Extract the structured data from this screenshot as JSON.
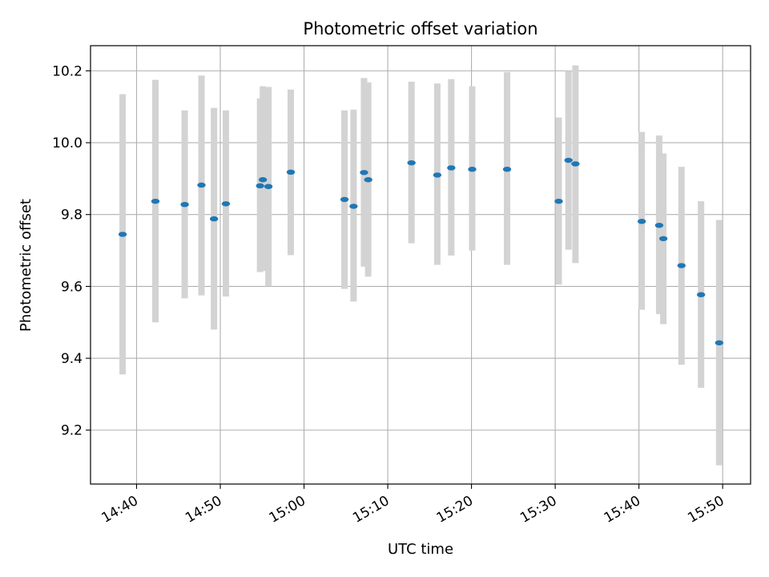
{
  "chart_data": {
    "type": "scatter",
    "title": "Photometric offset variation",
    "xlabel": "UTC time",
    "ylabel": "Photometric offset",
    "x_ticks": [
      "14:40",
      "14:50",
      "15:00",
      "15:10",
      "15:20",
      "15:30",
      "15:40",
      "15:50"
    ],
    "y_ticks": [
      "9.2",
      "9.4",
      "9.6",
      "9.8",
      "10.0",
      "10.2"
    ],
    "xlim": [
      "14:34:30",
      "15:53:20"
    ],
    "ylim": [
      9.05,
      10.27
    ],
    "grid": true,
    "colors": {
      "points": "#1f77b4",
      "error_bars": "#d3d3d3",
      "grid": "#b0b0b0"
    },
    "points": [
      {
        "x": "14:38:20",
        "y": 9.745,
        "ylow": 9.355,
        "yhigh": 10.135
      },
      {
        "x": "14:42:15",
        "y": 9.837,
        "ylow": 9.5,
        "yhigh": 10.175
      },
      {
        "x": "14:45:45",
        "y": 9.828,
        "ylow": 9.567,
        "yhigh": 10.09
      },
      {
        "x": "14:47:45",
        "y": 9.882,
        "ylow": 9.575,
        "yhigh": 10.187
      },
      {
        "x": "14:49:15",
        "y": 9.788,
        "ylow": 9.48,
        "yhigh": 10.097
      },
      {
        "x": "14:50:40",
        "y": 9.83,
        "ylow": 9.572,
        "yhigh": 10.09
      },
      {
        "x": "14:54:45",
        "y": 9.88,
        "ylow": 9.64,
        "yhigh": 10.123
      },
      {
        "x": "14:55:05",
        "y": 9.897,
        "ylow": 9.643,
        "yhigh": 10.157
      },
      {
        "x": "14:55:45",
        "y": 9.878,
        "ylow": 9.6,
        "yhigh": 10.155
      },
      {
        "x": "14:58:25",
        "y": 9.918,
        "ylow": 9.687,
        "yhigh": 10.148
      },
      {
        "x": "15:04:50",
        "y": 9.842,
        "ylow": 9.593,
        "yhigh": 10.09
      },
      {
        "x": "15:05:55",
        "y": 9.823,
        "ylow": 9.558,
        "yhigh": 10.092
      },
      {
        "x": "15:07:10",
        "y": 9.917,
        "ylow": 9.655,
        "yhigh": 10.18
      },
      {
        "x": "15:07:40",
        "y": 9.897,
        "ylow": 9.627,
        "yhigh": 10.168
      },
      {
        "x": "15:12:50",
        "y": 9.944,
        "ylow": 9.72,
        "yhigh": 10.17
      },
      {
        "x": "15:15:55",
        "y": 9.91,
        "ylow": 9.66,
        "yhigh": 10.165
      },
      {
        "x": "15:17:35",
        "y": 9.93,
        "ylow": 9.686,
        "yhigh": 10.177
      },
      {
        "x": "15:20:05",
        "y": 9.926,
        "ylow": 9.7,
        "yhigh": 10.157
      },
      {
        "x": "15:24:15",
        "y": 9.926,
        "ylow": 9.66,
        "yhigh": 10.197
      },
      {
        "x": "15:30:25",
        "y": 9.837,
        "ylow": 9.605,
        "yhigh": 10.07
      },
      {
        "x": "15:31:35",
        "y": 9.951,
        "ylow": 9.702,
        "yhigh": 10.2
      },
      {
        "x": "15:32:25",
        "y": 9.941,
        "ylow": 9.665,
        "yhigh": 10.215
      },
      {
        "x": "15:40:20",
        "y": 9.781,
        "ylow": 9.535,
        "yhigh": 10.03
      },
      {
        "x": "15:42:25",
        "y": 9.77,
        "ylow": 9.523,
        "yhigh": 10.02
      },
      {
        "x": "15:42:55",
        "y": 9.733,
        "ylow": 9.495,
        "yhigh": 9.97
      },
      {
        "x": "15:45:05",
        "y": 9.658,
        "ylow": 9.382,
        "yhigh": 9.933
      },
      {
        "x": "15:47:25",
        "y": 9.577,
        "ylow": 9.318,
        "yhigh": 9.837
      },
      {
        "x": "15:49:35",
        "y": 9.443,
        "ylow": 9.102,
        "yhigh": 9.785
      }
    ]
  }
}
